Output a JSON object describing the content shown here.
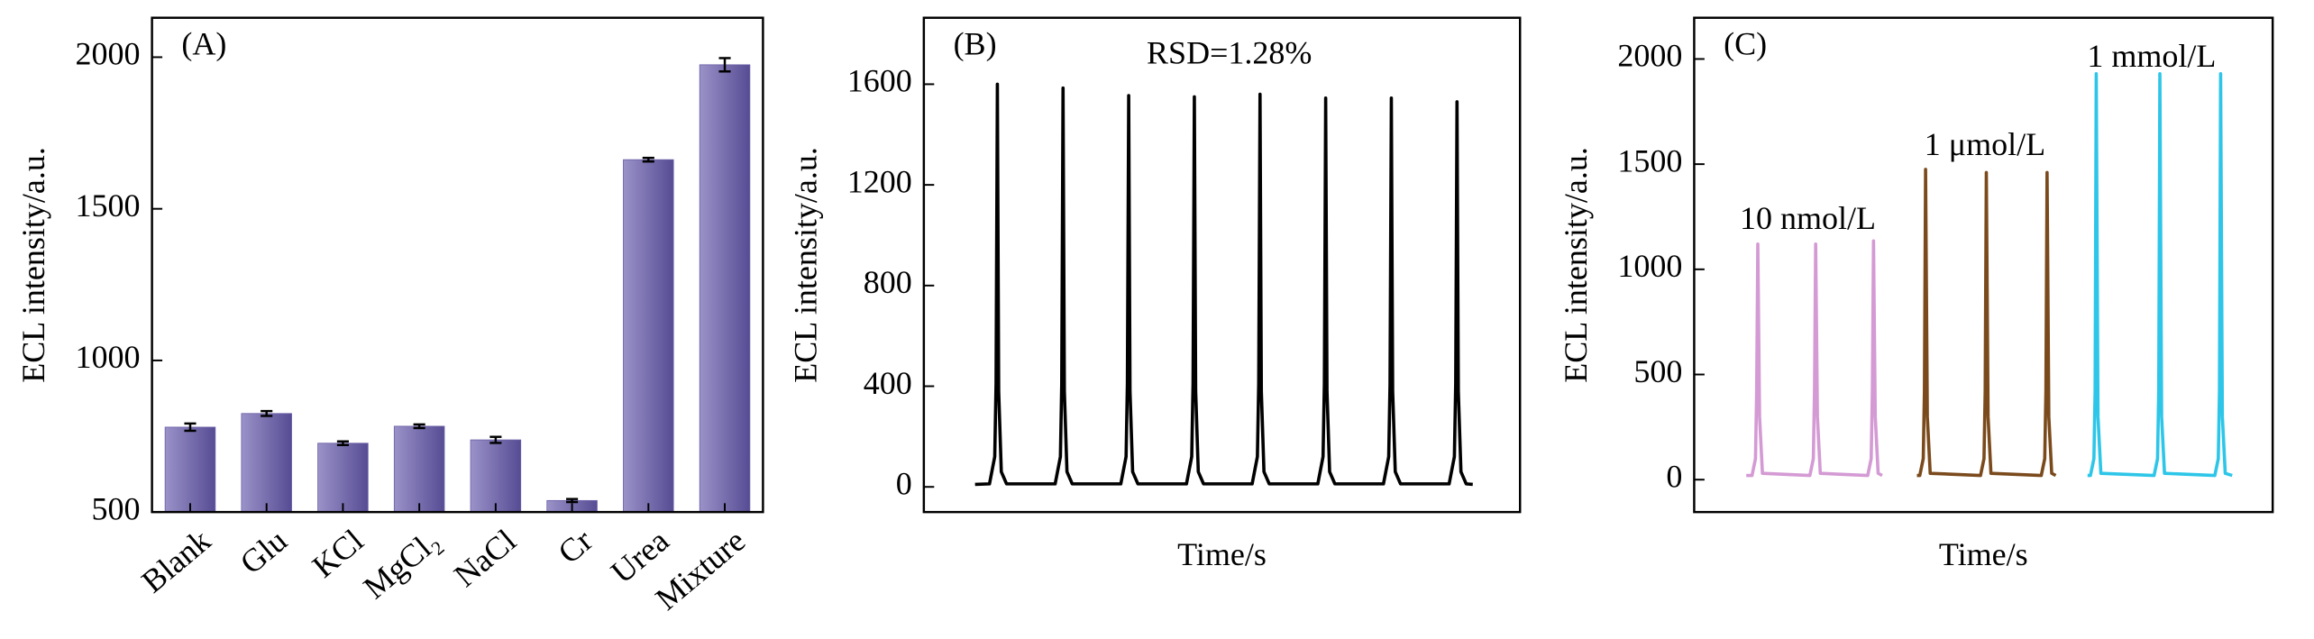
{
  "chart_data": [
    {
      "type": "bar",
      "panel_label": "(A)",
      "y_label": "ECL intensity/a.u.",
      "categories": [
        "Blank",
        "Glu",
        "KCl",
        "MgCl₂",
        "NaCl",
        "Cr",
        "Urea",
        "Mixture"
      ],
      "values": [
        780,
        825,
        727,
        783,
        738,
        538,
        1662,
        1975
      ],
      "errors": [
        12,
        8,
        6,
        6,
        10,
        5,
        6,
        22
      ],
      "color": "#6a60a6",
      "ylim": [
        500,
        2130
      ],
      "yticks": [
        500,
        1000,
        1500,
        2000
      ]
    },
    {
      "type": "line",
      "panel_label": "(B)",
      "annotation": "RSD=1.28%",
      "x_label": "Time/s",
      "y_label": "ECL intensity/a.u.",
      "x": [
        6.6,
        8.8,
        9.6,
        9.8,
        10,
        10.2,
        10.6,
        11.4,
        18.8,
        19.6,
        19.8,
        20,
        20.2,
        20.6,
        21.4,
        28.8,
        29.6,
        29.8,
        30,
        30.2,
        30.6,
        31.4,
        38.8,
        39.6,
        39.8,
        40,
        40.2,
        40.6,
        41.4,
        48.8,
        49.6,
        49.8,
        50,
        50.2,
        50.6,
        51.4,
        58.8,
        59.6,
        59.8,
        60,
        60.2,
        60.6,
        61.4,
        68.8,
        69.6,
        69.8,
        70,
        70.2,
        70.6,
        71.4,
        78.8,
        79.6,
        79.8,
        80,
        80.2,
        80.6,
        81.4,
        82.4
      ],
      "xlim": [
        -1.2,
        89.6
      ],
      "series": [
        {
          "color": "#000000",
          "values": [
            10,
            12,
            120,
            410,
            1600,
            380,
            60,
            12,
            12,
            120,
            410,
            1585,
            380,
            60,
            12,
            12,
            120,
            410,
            1555,
            380,
            60,
            12,
            12,
            120,
            410,
            1550,
            380,
            60,
            12,
            12,
            120,
            410,
            1560,
            380,
            60,
            12,
            12,
            120,
            410,
            1545,
            380,
            60,
            12,
            12,
            120,
            410,
            1545,
            380,
            60,
            12,
            12,
            120,
            410,
            1530,
            380,
            60,
            12,
            10
          ]
        }
      ],
      "ylim": [
        -100,
        1864
      ],
      "yticks": [
        0,
        400,
        800,
        1200,
        1600
      ]
    },
    {
      "type": "line",
      "panel_label": "(C)",
      "x_label": "Time/s",
      "y_label": "ECL intensity/a.u.",
      "xlim": [
        0,
        100
      ],
      "series": [
        {
          "name": "10 nmol/L",
          "color": "#d49ad4",
          "x": [
            9,
            10,
            10.6,
            10.8,
            11,
            11.3,
            11.8,
            20,
            20.6,
            20.8,
            21,
            21.3,
            21.8,
            30,
            30.6,
            30.8,
            31,
            31.3,
            31.8,
            32.5
          ],
          "values": [
            20,
            20,
            100,
            420,
            1120,
            300,
            30,
            20,
            100,
            420,
            1120,
            300,
            30,
            20,
            100,
            420,
            1135,
            300,
            30,
            20
          ]
        },
        {
          "name": "1 μmol/L",
          "color": "#7a4a1c",
          "x": [
            38.5,
            39,
            39.6,
            39.8,
            40,
            40.3,
            40.8,
            49.5,
            50.1,
            50.3,
            50.5,
            50.8,
            51.3,
            60,
            60.6,
            60.8,
            61,
            61.3,
            61.8,
            62.5
          ],
          "values": [
            20,
            20,
            100,
            420,
            1475,
            300,
            30,
            20,
            100,
            420,
            1460,
            300,
            30,
            20,
            100,
            420,
            1460,
            300,
            30,
            20
          ]
        },
        {
          "name": "1 mmol/L",
          "color": "#2ec6e8",
          "x": [
            68,
            68.5,
            69.1,
            69.3,
            69.5,
            69.8,
            70.3,
            79.5,
            80.1,
            80.3,
            80.5,
            80.8,
            81.3,
            90,
            90.6,
            90.8,
            91,
            91.3,
            91.8,
            93
          ],
          "values": [
            20,
            20,
            100,
            420,
            1930,
            300,
            30,
            20,
            100,
            420,
            1930,
            300,
            30,
            20,
            100,
            420,
            1930,
            300,
            30,
            20
          ]
        }
      ],
      "ylim": [
        -154,
        2196
      ],
      "yticks": [
        0,
        500,
        1000,
        1500,
        2000
      ]
    }
  ]
}
